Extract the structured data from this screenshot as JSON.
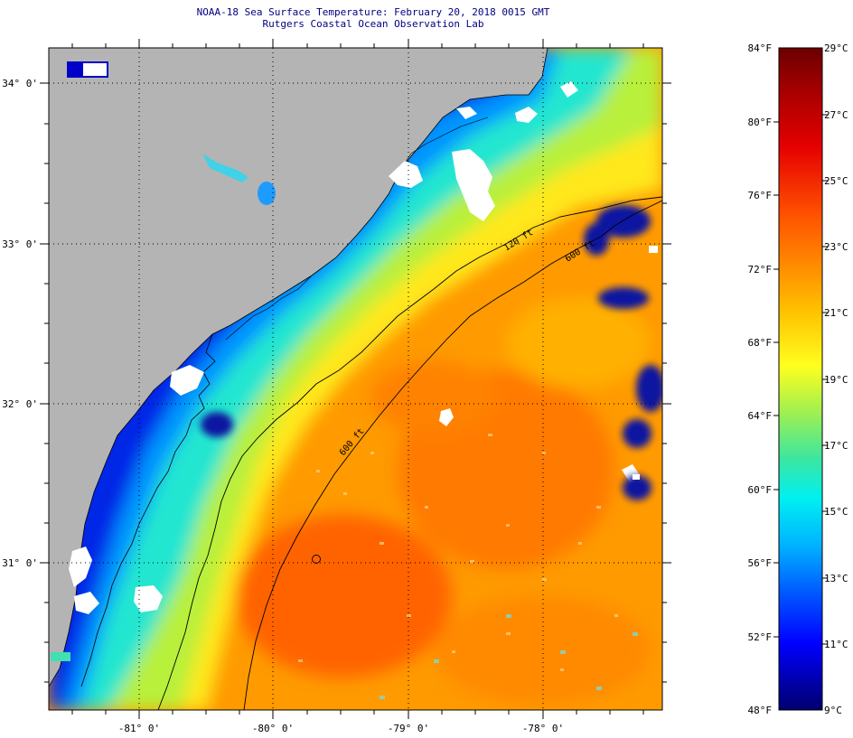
{
  "header": {
    "title_line1": "NOAA-18 Sea Surface Temperature:  February 20, 2018 0015 GMT",
    "title_line2": "Rutgers Coastal Ocean Observation Lab"
  },
  "map": {
    "lat_labels": [
      "34° 0'",
      "33° 0'",
      "32° 0'",
      "31° 0'"
    ],
    "lon_labels": [
      "-81° 0'",
      "-80° 0'",
      "-79° 0'",
      "-78° 0'"
    ],
    "isobath_labels": [
      "120 ft",
      "600 ft",
      "600 ft"
    ],
    "land_color": "#b4b4b4",
    "cloud_color": "#ffffff"
  },
  "colorbar": {
    "fahrenheit_labels": [
      "84°F",
      "80°F",
      "76°F",
      "72°F",
      "68°F",
      "64°F",
      "60°F",
      "56°F",
      "52°F",
      "48°F"
    ],
    "celsius_labels": [
      "29°C",
      "27°C",
      "25°C",
      "23°C",
      "21°C",
      "19°C",
      "17°C",
      "15°C",
      "13°C",
      "11°C",
      "9°C"
    ],
    "colors_top_to_bottom": [
      "#6b0000",
      "#c80000",
      "#ff2800",
      "#ff6400",
      "#ff9b00",
      "#ffc800",
      "#ffff1e",
      "#b4f03c",
      "#50dc96",
      "#00f0f0",
      "#00b4ff",
      "#0064ff",
      "#0000ff",
      "#0000b4",
      "#00006e"
    ]
  }
}
